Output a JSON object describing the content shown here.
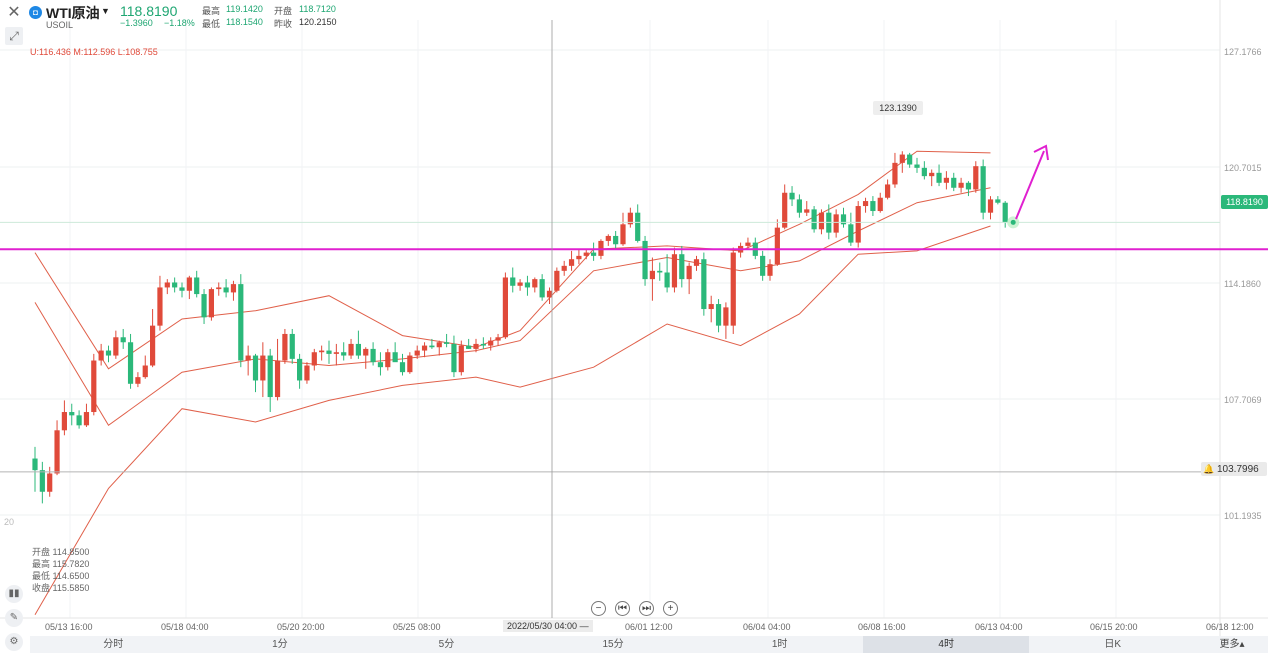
{
  "header": {
    "symbol_name": "WTI原油",
    "symbol_code": "USOIL",
    "symbol_badge": "◘",
    "last_price": "118.8190",
    "change": "−1.3960",
    "change_pct": "−1.18%",
    "stats": {
      "high_label": "最高",
      "high": "119.1420",
      "open_label": "开盘",
      "open": "118.7120",
      "low_label": "最低",
      "low": "118.1540",
      "prev_close_label": "昨收",
      "prev_close": "120.2150"
    },
    "boll": "U:116.436  M:112.596  L:108.755"
  },
  "hover_info": {
    "open": "开盘 114.8500",
    "high": "最高 115.7820",
    "low": "最低 114.6500",
    "close": "收盘 115.5850"
  },
  "price_axis": [
    "127.1766",
    "120.7015",
    "114.1860",
    "107.7069",
    "101.1935"
  ],
  "current_price_tag": "118.8190",
  "alert_price": "103.7996",
  "max_high_tag": "123.1390",
  "left_edge_label": "20",
  "date_axis": [
    "05/13 16:00",
    "05/18 04:00",
    "05/20 20:00",
    "05/25 08:00",
    "06/01 12:00",
    "06/04 04:00",
    "06/08 16:00",
    "06/13 04:00",
    "06/15 20:00",
    "06/18 12:00"
  ],
  "crosshair_date": "2022/05/30 04:00 —",
  "nav_controls": [
    "−",
    "⏮",
    "⏭",
    "+"
  ],
  "periods": [
    "分时",
    "1分",
    "5分",
    "15分",
    "1时",
    "4时",
    "日K"
  ],
  "active_period": "4时",
  "more_label": "更多▴",
  "icons": {
    "close": "close-icon",
    "draw": "draw-tool-icon",
    "indicator": "indicator-icon",
    "pen": "pen-icon",
    "settings": "chart-settings-icon",
    "bell": "bell-icon"
  },
  "colors": {
    "up": "#e04a3a",
    "down": "#2bb87a",
    "boll": "#e0604a",
    "support_line": "#e020d0",
    "arrow": "#e020d0",
    "price_tag": "#2bb87a"
  },
  "chart_data": {
    "type": "candlestick",
    "y_range": [
      95.0,
      131.0
    ],
    "candles": [
      [
        104.6,
        105.3,
        102.6,
        103.9
      ],
      [
        103.9,
        104.4,
        101.9,
        102.6
      ],
      [
        102.6,
        104.1,
        102.3,
        103.7
      ],
      [
        103.7,
        106.9,
        103.6,
        106.3
      ],
      [
        106.3,
        108.1,
        106.0,
        107.4
      ],
      [
        107.4,
        107.9,
        106.6,
        107.2
      ],
      [
        107.2,
        107.5,
        106.4,
        106.6
      ],
      [
        106.6,
        107.9,
        106.5,
        107.4
      ],
      [
        107.4,
        110.9,
        107.2,
        110.5
      ],
      [
        110.5,
        111.5,
        110.2,
        111.1
      ],
      [
        111.1,
        111.4,
        110.4,
        110.8
      ],
      [
        110.8,
        112.3,
        110.6,
        111.9
      ],
      [
        111.9,
        112.4,
        111.2,
        111.6
      ],
      [
        111.6,
        112.1,
        108.8,
        109.1
      ],
      [
        109.1,
        109.8,
        108.9,
        109.5
      ],
      [
        109.5,
        110.8,
        109.4,
        110.2
      ],
      [
        110.2,
        113.6,
        110.1,
        112.6
      ],
      [
        112.6,
        115.6,
        112.3,
        114.9
      ],
      [
        114.9,
        115.4,
        114.5,
        115.2
      ],
      [
        115.2,
        115.5,
        114.6,
        114.9
      ],
      [
        114.9,
        115.2,
        114.3,
        114.7
      ],
      [
        114.7,
        115.6,
        114.2,
        115.5
      ],
      [
        115.5,
        115.9,
        114.3,
        114.5
      ],
      [
        114.5,
        114.8,
        112.7,
        113.1
      ],
      [
        113.1,
        114.9,
        112.9,
        114.8
      ],
      [
        114.8,
        115.2,
        114.4,
        114.9
      ],
      [
        114.9,
        115.4,
        114.3,
        114.6
      ],
      [
        114.6,
        115.3,
        114.1,
        115.1
      ],
      [
        115.1,
        115.7,
        110.1,
        110.5
      ],
      [
        110.5,
        111.4,
        109.6,
        110.8
      ],
      [
        110.8,
        110.9,
        108.6,
        109.3
      ],
      [
        109.3,
        111.6,
        108.3,
        110.8
      ],
      [
        110.8,
        111.2,
        107.4,
        108.3
      ],
      [
        108.3,
        111.8,
        108.1,
        110.5
      ],
      [
        110.5,
        112.4,
        110.3,
        112.1
      ],
      [
        112.1,
        112.4,
        110.3,
        110.6
      ],
      [
        110.6,
        110.9,
        108.8,
        109.3
      ],
      [
        109.3,
        110.4,
        109.1,
        110.2
      ],
      [
        110.2,
        111.2,
        109.9,
        111.0
      ],
      [
        111.0,
        111.4,
        110.5,
        111.1
      ],
      [
        111.1,
        111.7,
        110.3,
        110.9
      ],
      [
        110.9,
        111.5,
        110.2,
        111.0
      ],
      [
        111.0,
        111.6,
        110.5,
        110.8
      ],
      [
        110.8,
        111.8,
        110.6,
        111.5
      ],
      [
        111.5,
        112.3,
        110.6,
        110.8
      ],
      [
        110.8,
        111.3,
        110.0,
        111.2
      ],
      [
        111.2,
        111.6,
        110.2,
        110.4
      ],
      [
        110.4,
        111.0,
        109.6,
        110.1
      ],
      [
        110.1,
        111.2,
        109.9,
        111.0
      ],
      [
        111.0,
        111.6,
        110.6,
        110.4
      ],
      [
        110.4,
        110.9,
        109.6,
        109.8
      ],
      [
        109.8,
        111.0,
        109.7,
        110.8
      ],
      [
        110.8,
        111.4,
        110.6,
        111.1
      ],
      [
        111.1,
        111.6,
        110.7,
        111.4
      ],
      [
        111.4,
        111.8,
        111.2,
        111.3
      ],
      [
        111.3,
        111.7,
        110.8,
        111.6
      ],
      [
        111.6,
        112.1,
        111.3,
        111.5
      ],
      [
        111.5,
        112.0,
        109.5,
        109.8
      ],
      [
        109.8,
        111.7,
        109.6,
        111.4
      ],
      [
        111.4,
        111.8,
        111.2,
        111.2
      ],
      [
        111.2,
        111.8,
        111.0,
        111.5
      ],
      [
        111.5,
        111.9,
        111.2,
        111.4
      ],
      [
        111.4,
        111.9,
        111.1,
        111.7
      ],
      [
        111.7,
        112.1,
        111.4,
        111.9
      ],
      [
        111.9,
        115.8,
        111.8,
        115.5
      ],
      [
        115.5,
        116.1,
        114.6,
        115.0
      ],
      [
        115.0,
        115.4,
        114.7,
        115.2
      ],
      [
        115.2,
        115.6,
        114.4,
        114.9
      ],
      [
        114.9,
        115.5,
        114.6,
        115.4
      ],
      [
        115.4,
        115.7,
        114.1,
        114.3
      ],
      [
        114.3,
        114.9,
        113.9,
        114.7
      ],
      [
        114.7,
        116.1,
        114.6,
        115.9
      ],
      [
        115.9,
        116.5,
        115.6,
        116.2
      ],
      [
        116.2,
        117.1,
        115.9,
        116.6
      ],
      [
        116.6,
        117.2,
        116.3,
        116.8
      ],
      [
        116.8,
        117.2,
        116.6,
        117.0
      ],
      [
        117.0,
        117.6,
        116.5,
        116.8
      ],
      [
        116.8,
        117.8,
        116.6,
        117.7
      ],
      [
        117.7,
        118.1,
        117.4,
        118.0
      ],
      [
        118.0,
        118.3,
        117.2,
        117.5
      ],
      [
        117.5,
        119.4,
        117.4,
        118.7
      ],
      [
        118.7,
        119.7,
        118.5,
        119.4
      ],
      [
        119.4,
        119.9,
        117.6,
        117.7
      ],
      [
        117.7,
        118.0,
        115.0,
        115.4
      ],
      [
        115.4,
        116.7,
        114.1,
        115.9
      ],
      [
        115.9,
        116.4,
        115.3,
        115.8
      ],
      [
        115.8,
        116.9,
        114.6,
        114.9
      ],
      [
        114.9,
        117.3,
        114.6,
        116.9
      ],
      [
        116.9,
        117.4,
        114.9,
        115.4
      ],
      [
        115.4,
        116.4,
        114.5,
        116.2
      ],
      [
        116.2,
        116.8,
        115.9,
        116.6
      ],
      [
        116.6,
        117.0,
        113.2,
        113.6
      ],
      [
        113.6,
        114.4,
        112.8,
        113.9
      ],
      [
        113.9,
        114.2,
        112.2,
        112.6
      ],
      [
        112.6,
        114.0,
        111.8,
        113.7
      ],
      [
        112.6,
        117.3,
        112.1,
        117.0
      ],
      [
        117.0,
        117.6,
        116.7,
        117.4
      ],
      [
        117.4,
        117.9,
        117.2,
        117.6
      ],
      [
        117.6,
        117.9,
        116.6,
        116.8
      ],
      [
        116.8,
        117.1,
        115.3,
        115.6
      ],
      [
        115.6,
        116.6,
        115.3,
        116.3
      ],
      [
        116.3,
        119.0,
        116.2,
        118.5
      ],
      [
        118.5,
        121.1,
        118.4,
        120.6
      ],
      [
        120.6,
        121.0,
        119.8,
        120.2
      ],
      [
        120.2,
        120.5,
        119.1,
        119.4
      ],
      [
        119.4,
        120.1,
        119.2,
        119.6
      ],
      [
        119.6,
        119.8,
        118.2,
        118.4
      ],
      [
        118.4,
        119.6,
        118.1,
        119.4
      ],
      [
        119.4,
        119.9,
        117.8,
        118.2
      ],
      [
        118.2,
        119.6,
        117.9,
        119.3
      ],
      [
        119.3,
        119.7,
        118.5,
        118.7
      ],
      [
        118.7,
        119.4,
        117.4,
        117.6
      ],
      [
        117.6,
        120.1,
        117.3,
        119.8
      ],
      [
        119.8,
        120.3,
        119.4,
        120.1
      ],
      [
        120.1,
        120.4,
        119.2,
        119.5
      ],
      [
        119.5,
        120.6,
        119.4,
        120.3
      ],
      [
        120.3,
        121.4,
        120.2,
        121.1
      ],
      [
        121.1,
        123.0,
        120.9,
        122.4
      ],
      [
        122.4,
        123.1,
        121.8,
        122.9
      ],
      [
        122.9,
        123.0,
        122.1,
        122.3
      ],
      [
        122.3,
        122.7,
        121.8,
        122.1
      ],
      [
        122.1,
        122.5,
        121.4,
        121.6
      ],
      [
        121.6,
        122.0,
        121.0,
        121.8
      ],
      [
        121.8,
        122.3,
        121.0,
        121.2
      ],
      [
        121.2,
        121.9,
        120.8,
        121.5
      ],
      [
        121.5,
        121.8,
        120.7,
        120.9
      ],
      [
        120.9,
        121.5,
        120.6,
        121.2
      ],
      [
        121.2,
        121.3,
        120.4,
        120.8
      ],
      [
        120.8,
        122.5,
        120.6,
        122.2
      ],
      [
        122.2,
        122.6,
        119.0,
        119.4
      ],
      [
        119.4,
        120.4,
        119.0,
        120.2
      ],
      [
        120.2,
        120.4,
        119.9,
        120.0
      ],
      [
        120.0,
        120.1,
        118.5,
        118.8
      ]
    ],
    "boll_upper": [
      [
        0,
        117
      ],
      [
        10,
        110
      ],
      [
        20,
        113
      ],
      [
        30,
        113.5
      ],
      [
        40,
        114.4
      ],
      [
        50,
        112
      ],
      [
        60,
        111.3
      ],
      [
        66,
        112.3
      ],
      [
        76,
        117.2
      ],
      [
        86,
        117.4
      ],
      [
        96,
        117.1
      ],
      [
        104,
        118.7
      ],
      [
        112,
        120.5
      ],
      [
        120,
        123.1
      ],
      [
        130,
        123.0
      ]
    ],
    "boll_middle": [
      [
        0,
        114
      ],
      [
        10,
        106.6
      ],
      [
        20,
        109.8
      ],
      [
        30,
        110.6
      ],
      [
        40,
        110.2
      ],
      [
        50,
        110.6
      ],
      [
        60,
        111.1
      ],
      [
        66,
        111.7
      ],
      [
        76,
        115.9
      ],
      [
        86,
        116.7
      ],
      [
        96,
        115.9
      ],
      [
        104,
        116.5
      ],
      [
        112,
        118.3
      ],
      [
        120,
        120.0
      ],
      [
        130,
        120.9
      ]
    ],
    "boll_lower": [
      [
        0,
        95.2
      ],
      [
        10,
        102.8
      ],
      [
        20,
        107.6
      ],
      [
        30,
        106.8
      ],
      [
        40,
        108.1
      ],
      [
        50,
        109.0
      ],
      [
        60,
        109.5
      ],
      [
        66,
        108.9
      ],
      [
        76,
        110.1
      ],
      [
        86,
        112.7
      ],
      [
        96,
        111.4
      ],
      [
        104,
        113.3
      ],
      [
        112,
        116.9
      ],
      [
        120,
        117.1
      ],
      [
        130,
        118.6
      ]
    ],
    "support_level": 117.2,
    "alert_level": 103.7996
  }
}
